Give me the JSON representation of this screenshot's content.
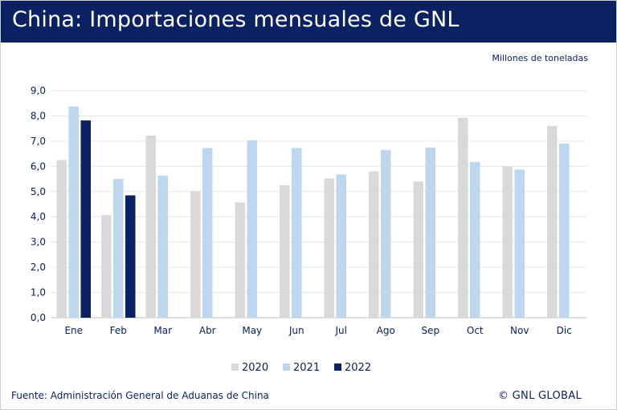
{
  "header": {
    "title": "China: Importaciones mensuales de GNL"
  },
  "unit_label": "Millones de toneladas",
  "footer": {
    "source": "Fuente: Administración General de Aduanas de China",
    "copyright": "© GNL GLOBAL"
  },
  "colors": {
    "header_bg": "#0b2161",
    "series_2020": "#d9d9d9",
    "series_2021": "#bdd7ee",
    "series_2022": "#0b2161",
    "gridline": "#e6e6e6",
    "text": "#0b2161"
  },
  "chart_data": {
    "type": "bar",
    "title": "China: Importaciones mensuales de GNL",
    "ylabel": "Millones de toneladas",
    "xlabel": "",
    "ylim": [
      0,
      9
    ],
    "yticks": [
      "0,0",
      "1,0",
      "2,0",
      "3,0",
      "4,0",
      "5,0",
      "6,0",
      "7,0",
      "8,0",
      "9,0"
    ],
    "grid": true,
    "legend_position": "bottom",
    "categories": [
      "Ene",
      "Feb",
      "Mar",
      "Abr",
      "May",
      "Jun",
      "Jul",
      "Ago",
      "Sep",
      "Oct",
      "Nov",
      "Dic"
    ],
    "series": [
      {
        "name": "2020",
        "color": "#d9d9d9",
        "values": [
          6.25,
          4.07,
          7.22,
          5.02,
          4.57,
          5.25,
          5.52,
          5.8,
          5.4,
          7.93,
          6.0,
          7.6
        ]
      },
      {
        "name": "2021",
        "color": "#bdd7ee",
        "values": [
          8.37,
          5.5,
          5.63,
          6.73,
          7.03,
          6.73,
          5.68,
          6.65,
          6.75,
          6.17,
          5.87,
          6.9
        ]
      },
      {
        "name": "2022",
        "color": "#0b2161",
        "values": [
          7.82,
          4.85,
          null,
          null,
          null,
          null,
          null,
          null,
          null,
          null,
          null,
          null
        ]
      }
    ]
  }
}
